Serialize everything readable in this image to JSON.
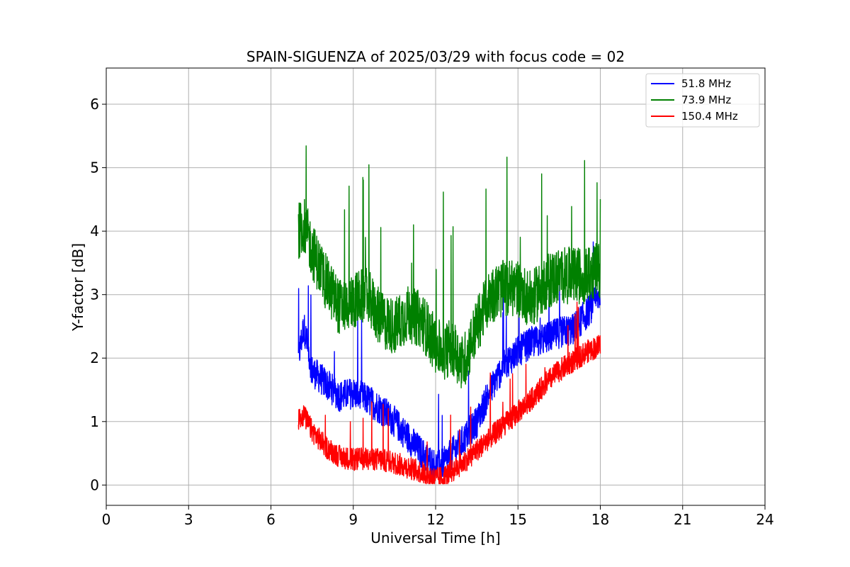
{
  "chart_data": {
    "type": "line",
    "title": "SPAIN-SIGUENZA of 2025/03/29 with focus code = 02",
    "xlabel": "Universal Time [h]",
    "ylabel": "Y-factor [dB]",
    "xlim": [
      0,
      24
    ],
    "ylim": [
      -0.32,
      6.57
    ],
    "xticks": [
      0,
      3,
      6,
      9,
      12,
      15,
      18,
      21,
      24
    ],
    "yticks": [
      0,
      1,
      2,
      3,
      4,
      5,
      6
    ],
    "grid": true,
    "legend_position": "top-right",
    "x_range_of_data": [
      7.0,
      18.0
    ],
    "series": [
      {
        "name": " 51.8 MHz",
        "color": "#0000ff",
        "x": [
          7.0,
          7.2,
          7.5,
          8.0,
          8.5,
          9.0,
          9.5,
          10.0,
          10.5,
          11.0,
          11.5,
          12.0,
          12.3,
          12.6,
          13.0,
          13.5,
          14.0,
          14.5,
          15.0,
          15.5,
          16.0,
          16.5,
          17.0,
          17.5,
          18.0
        ],
        "values": [
          2.0,
          2.5,
          1.8,
          1.6,
          1.4,
          1.45,
          1.35,
          1.2,
          1.0,
          0.75,
          0.5,
          0.3,
          0.35,
          0.5,
          0.7,
          1.0,
          1.5,
          1.9,
          2.1,
          2.25,
          2.3,
          2.4,
          2.45,
          2.7,
          3.0
        ],
        "noise": 0.25
      },
      {
        "name": " 73.9 MHz",
        "color": "#008000",
        "x": [
          7.0,
          7.2,
          7.5,
          8.0,
          8.5,
          9.0,
          9.5,
          10.0,
          10.5,
          11.0,
          11.5,
          12.0,
          12.3,
          12.6,
          13.0,
          13.5,
          14.0,
          14.5,
          15.0,
          15.5,
          16.0,
          16.5,
          17.0,
          17.5,
          18.0
        ],
        "values": [
          4.0,
          4.1,
          3.7,
          3.2,
          2.8,
          2.9,
          3.0,
          2.6,
          2.5,
          2.7,
          2.6,
          2.2,
          2.1,
          2.2,
          1.9,
          2.5,
          3.0,
          3.1,
          3.1,
          2.9,
          3.2,
          3.3,
          3.3,
          3.3,
          3.4
        ],
        "noise": 0.45
      },
      {
        "name": " 150.4 MHz",
        "color": "#ff0000",
        "x": [
          7.0,
          7.2,
          7.5,
          8.0,
          8.5,
          9.0,
          9.5,
          10.0,
          10.5,
          11.0,
          11.5,
          12.0,
          12.3,
          12.6,
          13.0,
          13.5,
          14.0,
          14.5,
          15.0,
          15.5,
          16.0,
          16.5,
          17.0,
          17.5,
          18.0
        ],
        "values": [
          1.05,
          1.1,
          0.85,
          0.6,
          0.45,
          0.4,
          0.42,
          0.4,
          0.35,
          0.28,
          0.2,
          0.1,
          0.12,
          0.22,
          0.35,
          0.55,
          0.75,
          0.95,
          1.15,
          1.35,
          1.6,
          1.8,
          1.95,
          2.1,
          2.2
        ],
        "noise": 0.18
      }
    ]
  }
}
